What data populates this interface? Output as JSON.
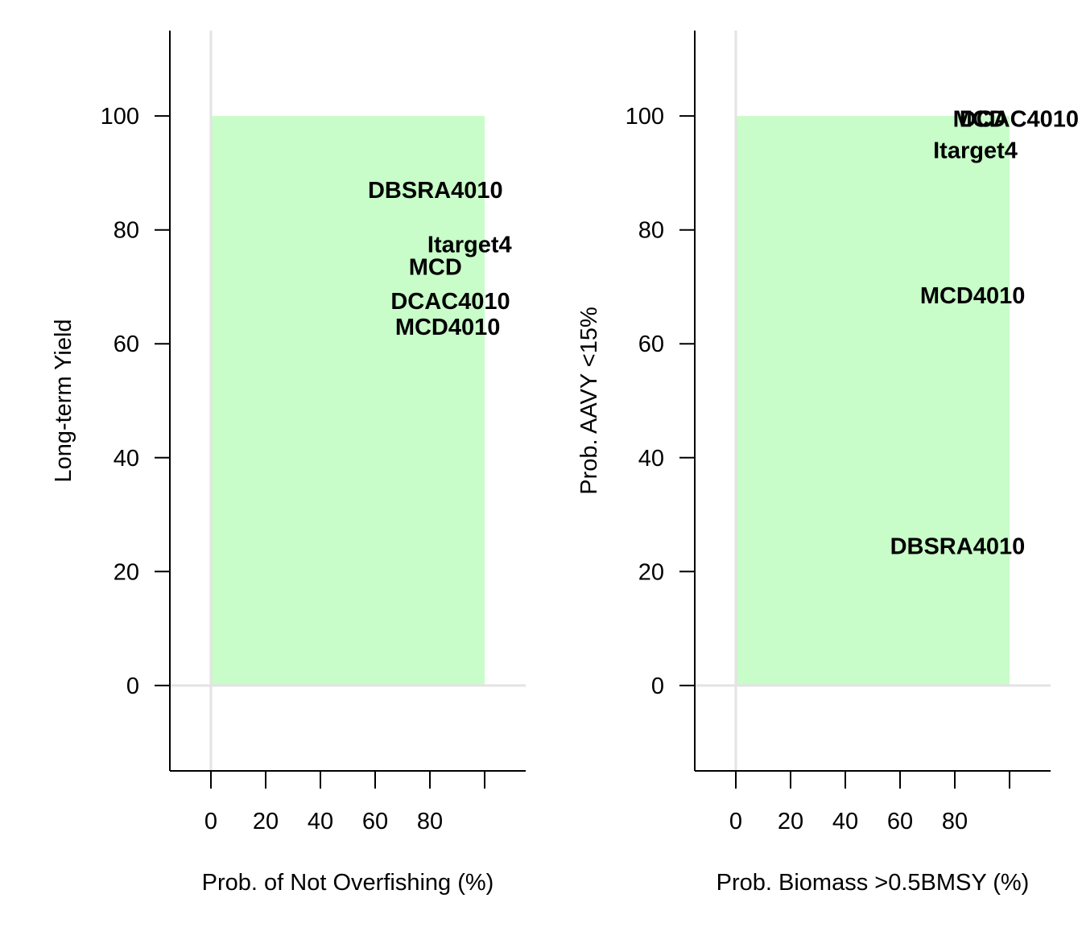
{
  "colors": {
    "region": "#c8fcc8",
    "reference_line": "#e3e3e3",
    "axis": "#000000",
    "text": "#000000"
  },
  "chart_data": [
    {
      "type": "scatter",
      "title": "",
      "xlabel": "Prob. of Not Overfishing (%)",
      "ylabel": "Long-term Yield",
      "xlim": [
        -15,
        115
      ],
      "ylim": [
        -15,
        115
      ],
      "xticks": [
        "0",
        "20",
        "40",
        "60",
        "80"
      ],
      "yticks": [
        "0",
        "20",
        "40",
        "60",
        "80",
        "100"
      ],
      "reference_lines": {
        "x": 0,
        "y": 0
      },
      "shaded_region": {
        "x": [
          0,
          100
        ],
        "y": [
          0,
          100
        ]
      },
      "points": [
        {
          "label": "DBSRA4010",
          "x": 82,
          "y": 87
        },
        {
          "label": "Itarget4",
          "x": 94.5,
          "y": 77.5
        },
        {
          "label": "MCD",
          "x": 82,
          "y": 73.5
        },
        {
          "label": "DCAC4010",
          "x": 87.5,
          "y": 67.5
        },
        {
          "label": "MCD4010",
          "x": 86.5,
          "y": 63
        }
      ]
    },
    {
      "type": "scatter",
      "title": "",
      "xlabel": "Prob. Biomass >0.5BMSY (%)",
      "ylabel": "Prob. AAVY <15%",
      "xlim": [
        -15,
        115
      ],
      "ylim": [
        -15,
        115
      ],
      "xticks": [
        "0",
        "20",
        "40",
        "60",
        "80"
      ],
      "yticks": [
        "0",
        "20",
        "40",
        "60",
        "80",
        "100"
      ],
      "reference_lines": {
        "x": 0,
        "y": 0
      },
      "shaded_region": {
        "x": [
          0,
          100
        ],
        "y": [
          0,
          100
        ]
      },
      "points": [
        {
          "label": "DCAC4010",
          "x": 103.5,
          "y": 99.5
        },
        {
          "label": "MCD",
          "x": 89,
          "y": 99.5
        },
        {
          "label": "Itarget4",
          "x": 87.5,
          "y": 94
        },
        {
          "label": "MCD4010",
          "x": 86.5,
          "y": 68.5
        },
        {
          "label": "DBSRA4010",
          "x": 81,
          "y": 24.5
        }
      ]
    }
  ]
}
